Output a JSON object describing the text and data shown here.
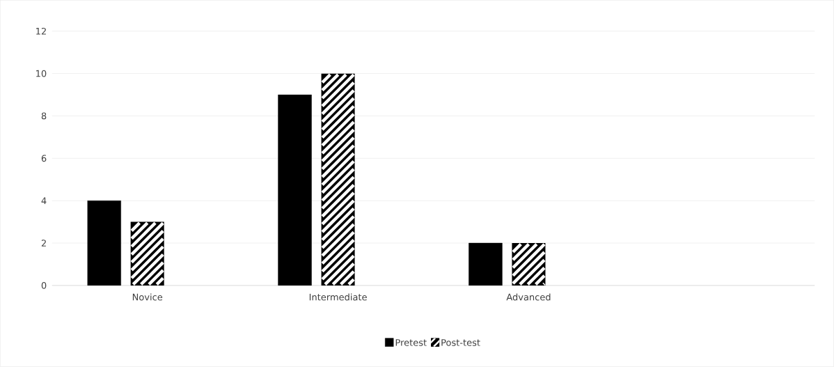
{
  "chart_data": {
    "type": "bar",
    "categories": [
      "Novice",
      "Intermediate",
      "Advanced",
      null
    ],
    "series": [
      {
        "name": "Pretest",
        "color": "#000000",
        "values": [
          4,
          9,
          2,
          null
        ]
      },
      {
        "name": "Post-test",
        "color": "#000000",
        "values": [
          3,
          10,
          2,
          null
        ]
      }
    ],
    "ylim": [
      0,
      12
    ],
    "yticks": [
      0,
      2,
      4,
      6,
      8,
      10,
      12
    ],
    "grid": "y",
    "legend": "bottom"
  }
}
